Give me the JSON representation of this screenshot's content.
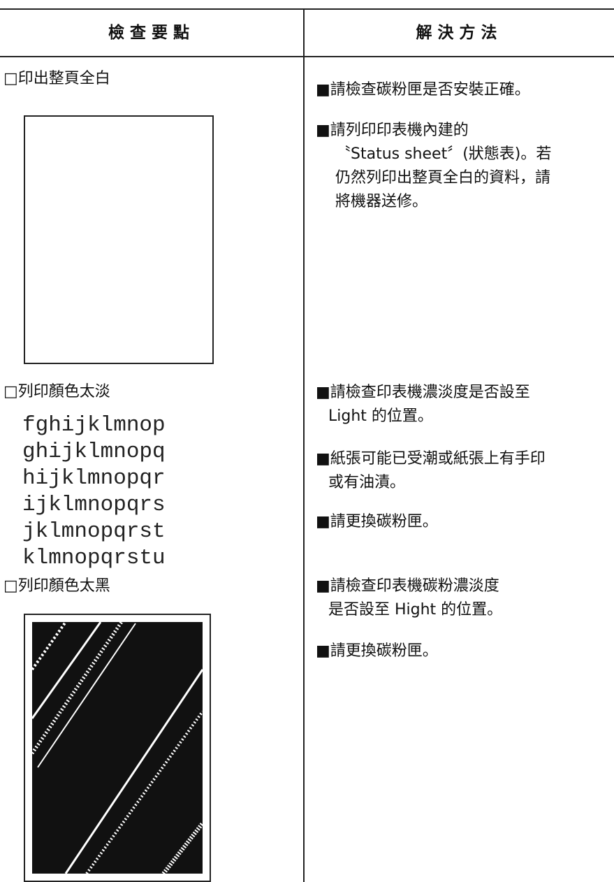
{
  "table": {
    "headers": [
      "檢查要點",
      "解決方法"
    ],
    "rows": [
      {
        "check": "□印出整頁全白",
        "solutions": [
          [
            "■請檢查碳粉匣是否安裝正確。"
          ],
          [
            "■請列印印表機內建的",
            "〝Status sheet〞(狀態表)。若",
            "仍然列印出整頁全白的資料，請",
            "將機器送修。"
          ]
        ]
      },
      {
        "check": "□列印顏色太淡",
        "sample": [
          "fghijklmnop",
          "ghijklmnopq",
          "hijklmnopqr",
          "ijklmnopqrs",
          "jklmnopqrst",
          "klmnopqrstu"
        ],
        "solutions": [
          [
            "■請檢查印表機濃淡度是否設至",
            "Light 的位置。"
          ],
          [
            "■紙張可能已受潮或紙張上有手印",
            "或有油漬。"
          ],
          [
            "■請更換碳粉匣。"
          ]
        ]
      },
      {
        "check": "□列印顏色太黑",
        "solutions": [
          [
            "■請檢查印表機碳粉濃淡度",
            "是否設至 Hight 的位置。"
          ],
          [
            "■請更換碳粉匣。"
          ]
        ]
      }
    ]
  }
}
